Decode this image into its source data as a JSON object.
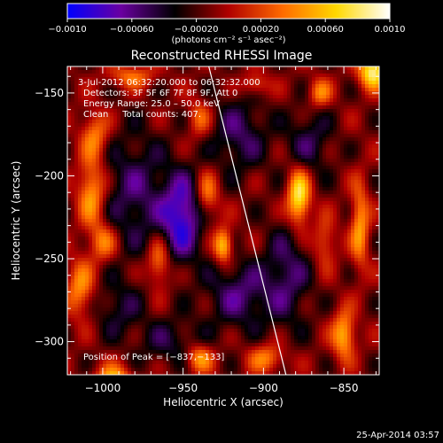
{
  "chart_data": {
    "type": "heatmap",
    "title": "Reconstructed RHESSI Image",
    "xlabel": "Heliocentric X (arcsec)",
    "ylabel": "Heliocentric Y (arcsec)",
    "xlim": [
      -1022,
      -828
    ],
    "ylim": [
      -320,
      -134
    ],
    "xticks": [
      -1000,
      -950,
      -900,
      -850
    ],
    "xtick_labels": [
      "−1000",
      "−950",
      "−900",
      "−850"
    ],
    "yticks": [
      -150,
      -200,
      -250,
      -300
    ],
    "ytick_labels": [
      "−150",
      "−200",
      "−250",
      "−300"
    ],
    "colorbar": {
      "range": [
        -0.001,
        0.001
      ],
      "ticks": [
        -0.001,
        -0.0006,
        -0.0002,
        0.0002,
        0.0006,
        0.001
      ],
      "tick_labels": [
        "−0.0010",
        "−0.00060",
        "−0.00020",
        "0.00020",
        "0.00060",
        "0.0010"
      ],
      "units_label": "(photons cm⁻² s⁻¹ asec⁻²)",
      "colors": [
        "#0000ff",
        "#6a00a0",
        "#000000",
        "#b00000",
        "#ff6a00",
        "#ffd800",
        "#ffffff"
      ]
    },
    "info_lines": [
      "3-Jul-2012 06:32:20.000 to 06:32:32.000",
      "Detectors: 3F 5F 6F 7F 8F 9F, Att 0",
      "Energy Range: 25.0 – 50.0 keV",
      "Clean     Total counts: 407."
    ],
    "peak_label": "Position of Peak = [−837,−133]",
    "peak": [
      -837,
      -133
    ],
    "limb_line": {
      "x": [
        -934,
        -886
      ],
      "y": [
        -134,
        -320
      ]
    },
    "sources": [
      {
        "x": -951,
        "y": -225,
        "value": -0.00075,
        "sx": 9,
        "sy": 18
      },
      {
        "x": -980,
        "y": -210,
        "value": -0.0004,
        "sx": 14,
        "sy": 25
      },
      {
        "x": -915,
        "y": -175,
        "value": -0.0004,
        "sx": 12,
        "sy": 16
      },
      {
        "x": -915,
        "y": -272,
        "value": -0.00045,
        "sx": 14,
        "sy": 14
      },
      {
        "x": -885,
        "y": -260,
        "value": -0.0004,
        "sx": 10,
        "sy": 22
      },
      {
        "x": -958,
        "y": -300,
        "value": -0.0003,
        "sx": 14,
        "sy": 10
      },
      {
        "x": -872,
        "y": -180,
        "value": -0.00035,
        "sx": 10,
        "sy": 14
      },
      {
        "x": -990,
        "y": -280,
        "value": -0.0003,
        "sx": 10,
        "sy": 12
      },
      {
        "x": -878,
        "y": -213,
        "value": 0.00095,
        "sx": 5,
        "sy": 12
      },
      {
        "x": -832,
        "y": -137,
        "value": 0.001,
        "sx": 6,
        "sy": 7
      },
      {
        "x": -1007,
        "y": -210,
        "value": 0.00065,
        "sx": 6,
        "sy": 14
      },
      {
        "x": -1005,
        "y": -175,
        "value": 0.0005,
        "sx": 6,
        "sy": 10
      },
      {
        "x": -925,
        "y": -242,
        "value": 0.0008,
        "sx": 4,
        "sy": 7
      },
      {
        "x": -935,
        "y": -212,
        "value": 0.0005,
        "sx": 5,
        "sy": 10
      },
      {
        "x": -965,
        "y": -252,
        "value": 0.00055,
        "sx": 5,
        "sy": 10
      },
      {
        "x": -993,
        "y": -325,
        "value": 0.0008,
        "sx": 8,
        "sy": 7
      },
      {
        "x": -1014,
        "y": -268,
        "value": 0.00055,
        "sx": 6,
        "sy": 12
      },
      {
        "x": -850,
        "y": -296,
        "value": 0.0007,
        "sx": 5,
        "sy": 10
      },
      {
        "x": -840,
        "y": -230,
        "value": 0.0006,
        "sx": 4,
        "sy": 18
      },
      {
        "x": -898,
        "y": -310,
        "value": 0.0005,
        "sx": 8,
        "sy": 6
      },
      {
        "x": -982,
        "y": -140,
        "value": 0.00045,
        "sx": 10,
        "sy": 5
      },
      {
        "x": -905,
        "y": -145,
        "value": 0.0004,
        "sx": 6,
        "sy": 5
      },
      {
        "x": -940,
        "y": -310,
        "value": 0.0006,
        "sx": 6,
        "sy": 6
      },
      {
        "x": -865,
        "y": -150,
        "value": 0.0005,
        "sx": 5,
        "sy": 6
      },
      {
        "x": -940,
        "y": -165,
        "value": 0.0004,
        "sx": 5,
        "sy": 8
      },
      {
        "x": -1000,
        "y": -240,
        "value": 0.0005,
        "sx": 6,
        "sy": 8
      },
      {
        "x": -862,
        "y": -240,
        "value": 0.0004,
        "sx": 5,
        "sy": 10
      }
    ]
  },
  "footer": {
    "date": "25-Apr-2014 03:57"
  }
}
